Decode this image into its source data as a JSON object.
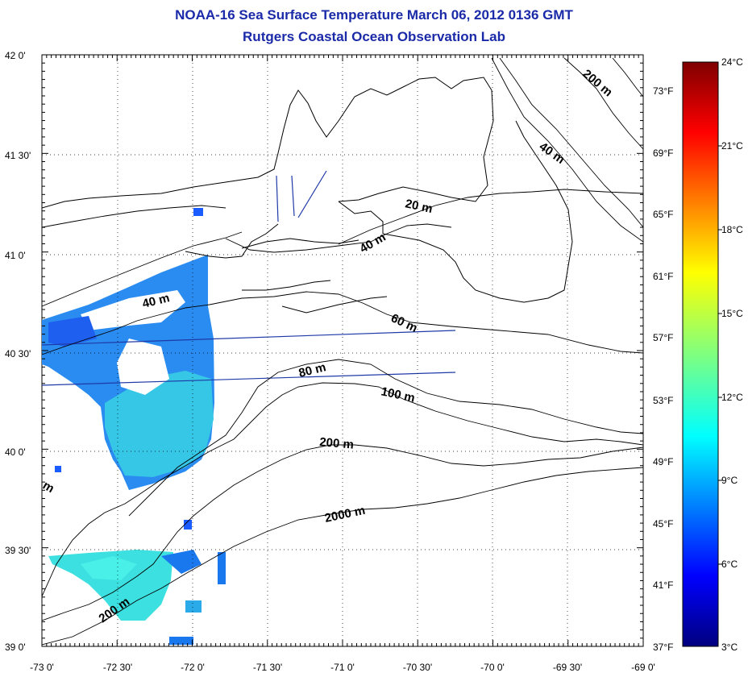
{
  "title": "NOAA-16 Sea Surface Temperature March 06, 2012 0136 GMT",
  "subtitle": "Rutgers Coastal Ocean Observation Lab",
  "colors": {
    "title": "#1a2aa8",
    "land_outline": "#000000",
    "track_line": "#1f3aa8",
    "sst_cool": "#1a5cff",
    "sst_warm": "#2ee6e6"
  },
  "map": {
    "lon_ticks": [
      "-73 0'",
      "-72 30'",
      "-72 0'",
      "-71 30'",
      "-71 0'",
      "-70 30'",
      "-70 0'",
      "-69 30'",
      "-69 0'"
    ],
    "lat_ticks": [
      "42 0'",
      "41 30'",
      "41 0'",
      "40 30'",
      "40 0'",
      "39 30'",
      "39 0'"
    ],
    "fahrenheit_ticks": [
      "73°F",
      "69°F",
      "65°F",
      "61°F",
      "57°F",
      "53°F",
      "49°F",
      "45°F",
      "41°F",
      "37°F"
    ],
    "contour_labels": [
      {
        "text": "200 m",
        "key": "c200ne"
      },
      {
        "text": "40 m",
        "key": "c40ne"
      },
      {
        "text": "20 m",
        "key": "c20"
      },
      {
        "text": "40 m",
        "key": "c40"
      },
      {
        "text": "40 m",
        "key": "c40w"
      },
      {
        "text": "60 m",
        "key": "c60"
      },
      {
        "text": "80 m",
        "key": "c80"
      },
      {
        "text": "100 m",
        "key": "c100"
      },
      {
        "text": "200 m",
        "key": "c200"
      },
      {
        "text": "2000 m",
        "key": "c2000"
      },
      {
        "text": "200 m",
        "key": "c200sw"
      },
      {
        "text": "m",
        "key": "cm"
      }
    ]
  },
  "colorbar": {
    "celsius_ticks": [
      "24°C",
      "21°C",
      "18°C",
      "15°C",
      "12°C",
      "9°C",
      "6°C",
      "3°C"
    ],
    "range_c": [
      3,
      24
    ]
  }
}
